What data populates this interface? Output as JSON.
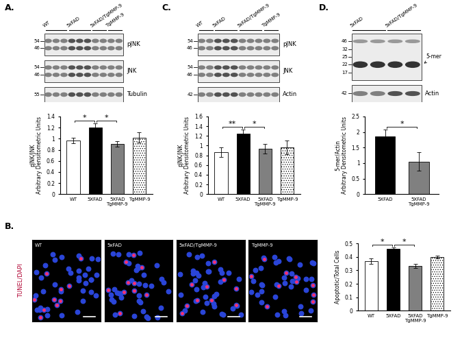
{
  "chart_data": [
    {
      "type": "bar",
      "y_label": "pJNK/JNK\nArbitrary Densitometric Units",
      "categories": [
        "WT",
        "5XFAD",
        "5XFAD\nTgMMP-9",
        "TgMMP-9"
      ],
      "values": [
        0.97,
        1.2,
        0.9,
        1.02
      ],
      "errors": [
        0.05,
        0.07,
        0.05,
        0.09
      ],
      "colors": [
        "#ffffff",
        "#000000",
        "#808080",
        "#ffffff"
      ],
      "ylim": [
        0,
        1.4
      ],
      "yticks": [
        0,
        0.2,
        0.4,
        0.6,
        0.8,
        1,
        1.2,
        1.4
      ],
      "annotations": [
        {
          "between": [
            "WT",
            "5XFAD"
          ],
          "text": "*"
        },
        {
          "between": [
            "5XFAD",
            "5XFAD\nTgMMP-9"
          ],
          "text": "*"
        }
      ]
    },
    {
      "type": "bar",
      "y_label": "Apoptotic/Total Cells",
      "categories": [
        "WT",
        "5XFAD",
        "5XFAD\nTgMMP-9",
        "TgMMP-9"
      ],
      "values": [
        0.37,
        0.46,
        0.335,
        0.4
      ],
      "errors": [
        0.02,
        0.01,
        0.015,
        0.01
      ],
      "colors": [
        "#ffffff",
        "#000000",
        "#808080",
        "#ffffff"
      ],
      "ylim": [
        0,
        0.5
      ],
      "yticks": [
        0,
        0.1,
        0.2,
        0.3,
        0.4,
        0.5
      ],
      "annotations": [
        {
          "between": [
            "WT",
            "5XFAD"
          ],
          "text": "*"
        },
        {
          "between": [
            "5XFAD",
            "5XFAD\nTgMMP-9"
          ],
          "text": "*"
        }
      ]
    },
    {
      "type": "bar",
      "y_label": "pJNK/JNK\nArbitrary Densitometric Units",
      "categories": [
        "WT",
        "5XFAD",
        "5XFAD\nTgMMP-9",
        "TgMMP-9"
      ],
      "values": [
        0.87,
        1.25,
        0.94,
        0.96
      ],
      "errors": [
        0.1,
        0.08,
        0.1,
        0.14
      ],
      "colors": [
        "#ffffff",
        "#000000",
        "#808080",
        "#ffffff"
      ],
      "ylim": [
        0,
        1.6
      ],
      "yticks": [
        0,
        0.2,
        0.4,
        0.6,
        0.8,
        1,
        1.2,
        1.4,
        1.6
      ],
      "annotations": [
        {
          "between": [
            "WT",
            "5XFAD"
          ],
          "text": "**"
        },
        {
          "between": [
            "5XFAD",
            "5XFAD\nTgMMP-9"
          ],
          "text": "*"
        }
      ]
    },
    {
      "type": "bar",
      "y_label": "5-mer/Actin\nArbitrary Densitometric Units",
      "categories": [
        "5XFAD",
        "5XFAD\nTgMMP-9"
      ],
      "values": [
        1.87,
        1.05
      ],
      "errors": [
        0.2,
        0.3
      ],
      "colors": [
        "#000000",
        "#808080"
      ],
      "ylim": [
        0,
        2.5
      ],
      "yticks": [
        0,
        0.5,
        1,
        1.5,
        2,
        2.5
      ],
      "annotations": [
        {
          "between": [
            "5XFAD",
            "5XFAD\nTgMMP-9"
          ],
          "text": "*"
        }
      ]
    }
  ],
  "blots": [
    {
      "letter": "A.",
      "groups": [
        {
          "label": "WT",
          "lanes": 3
        },
        {
          "label": "5xFAD",
          "lanes": 3
        },
        {
          "label": "5xFAD/TgMMP-9",
          "lanes": 2
        },
        {
          "label": "TgMMP-9",
          "lanes": 2
        }
      ],
      "rows": [
        {
          "label": "pJNK",
          "markers": [
            54,
            46
          ]
        },
        {
          "label": "JNK",
          "markers": [
            54,
            46
          ]
        },
        {
          "label": "Tubulin",
          "markers": [
            55
          ]
        }
      ]
    },
    {
      "letter": "C.",
      "groups": [
        {
          "label": "WT",
          "lanes": 2
        },
        {
          "label": "5xFAD",
          "lanes": 3
        },
        {
          "label": "5xFAD/TgMMP-9",
          "lanes": 3
        },
        {
          "label": "TgMMP-9",
          "lanes": 2
        }
      ],
      "rows": [
        {
          "label": "pJNK",
          "markers": [
            54,
            46
          ]
        },
        {
          "label": "JNK",
          "markers": [
            54,
            46
          ]
        },
        {
          "label": "Actin",
          "markers": [
            42
          ]
        }
      ]
    },
    {
      "letter": "D.",
      "groups": [
        {
          "label": "5xFAD",
          "lanes": 2
        },
        {
          "label": "5xFAD/TgMMP-9",
          "lanes": 2
        }
      ],
      "rows": [
        {
          "label": "5-mer",
          "markers": [
            46,
            32,
            25,
            22,
            17
          ],
          "arrow_to": 22
        },
        {
          "label": "Actin",
          "markers": [
            42
          ]
        }
      ]
    }
  ],
  "micrographs": {
    "letter": "B.",
    "stain": "TUNEL/DAPI",
    "images": [
      "WT",
      "5xFAD",
      "5xFAD/TgMMP-9",
      "TgMMP-9"
    ]
  }
}
